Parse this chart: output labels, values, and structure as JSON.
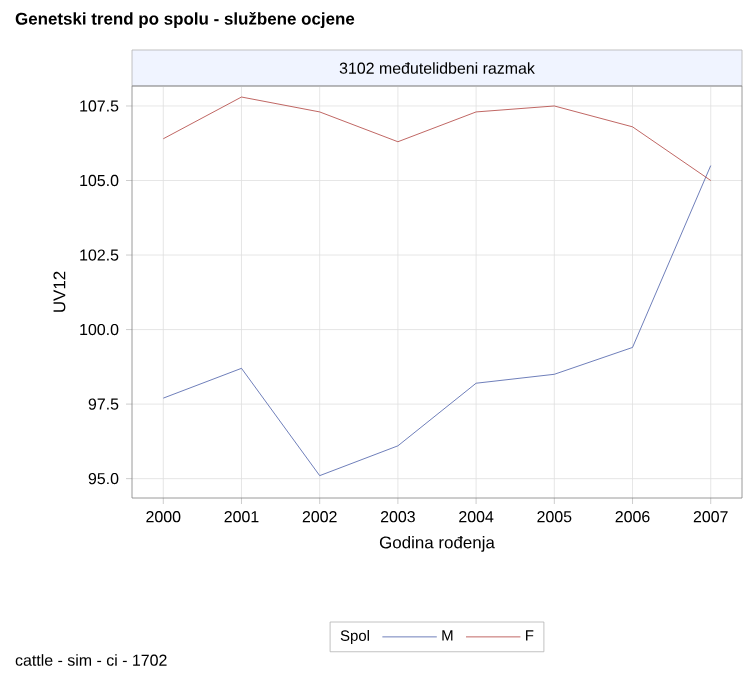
{
  "chart_data": {
    "type": "line",
    "title": "Genetski trend po spolu - službene ocjene",
    "subtitle": "3102 međutelidbeni razmak",
    "xlabel": "Godina rođenja",
    "ylabel": "UV12",
    "legend_title": "Spol",
    "annotations": [
      "cattle - sim - ci - 1702"
    ],
    "x": [
      2000,
      2001,
      2002,
      2003,
      2004,
      2005,
      2006,
      2007
    ],
    "series": [
      {
        "name": "M",
        "color": "#4a5ea8",
        "values": [
          97.7,
          98.7,
          95.1,
          96.1,
          98.2,
          98.5,
          99.4,
          105.5
        ]
      },
      {
        "name": "F",
        "color": "#b0403c",
        "values": [
          106.4,
          107.8,
          107.3,
          106.3,
          107.3,
          107.5,
          106.8,
          105.0
        ]
      }
    ],
    "xlim": [
      1999.6,
      2007.4
    ],
    "xticks": [
      2000,
      2001,
      2002,
      2003,
      2004,
      2005,
      2006,
      2007
    ],
    "ylim": [
      94.35,
      108.17
    ],
    "yticks": [
      {
        "value": 95,
        "label": "95.0"
      },
      {
        "value": 97.5,
        "label": "97.5"
      },
      {
        "value": 100,
        "label": "100.0"
      },
      {
        "value": 102.5,
        "label": "102.5"
      },
      {
        "value": 105,
        "label": "105.0"
      },
      {
        "value": 107.5,
        "label": "107.5"
      }
    ],
    "grid": true,
    "legend": "bottom",
    "marker": "none",
    "line_style": "solid"
  }
}
